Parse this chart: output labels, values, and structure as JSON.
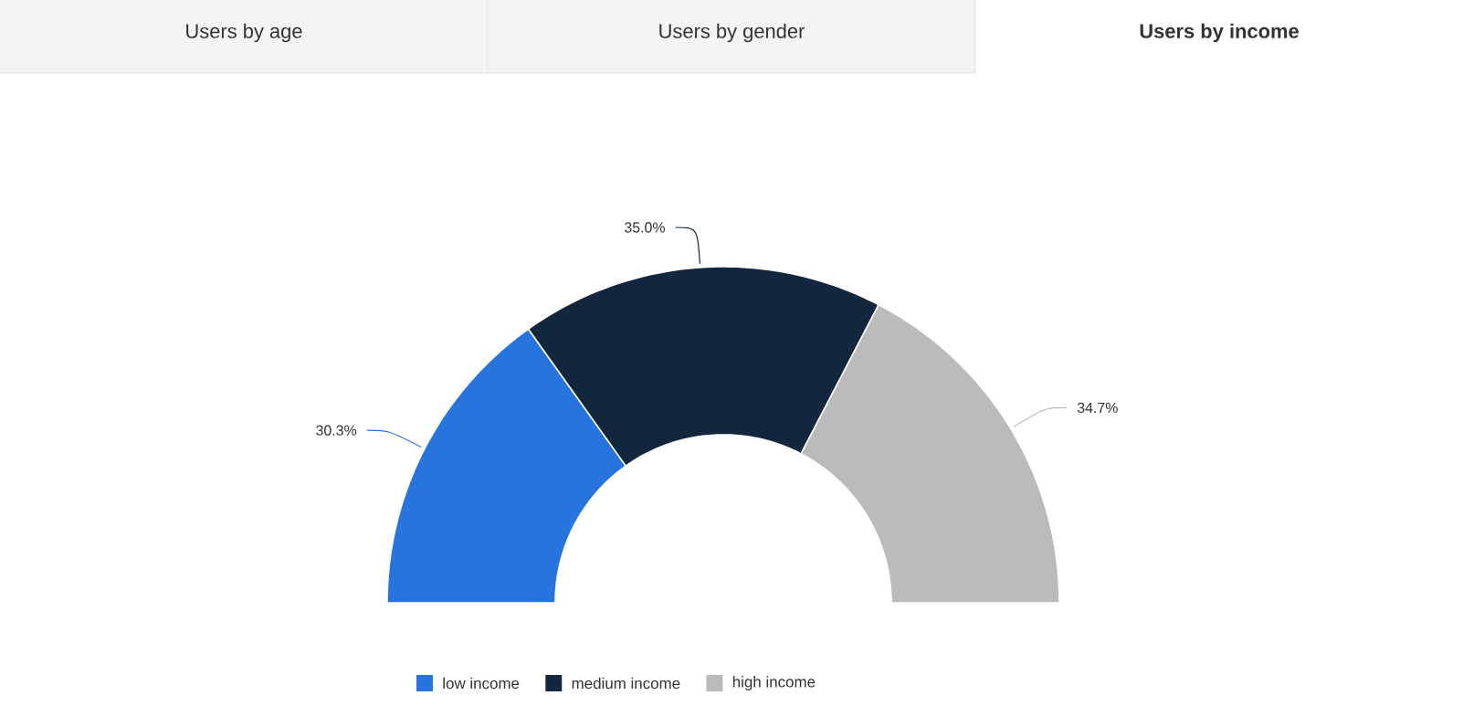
{
  "chart_data": {
    "type": "donut",
    "title": "Users by income",
    "annotations": [
      "Users by age",
      "Users by gender"
    ],
    "categories": [
      "low income",
      "medium income",
      "high income"
    ],
    "values": [
      30.3,
      35.0,
      34.7
    ],
    "value_labels": [
      "30.3%",
      "35.0%",
      "34.7%"
    ],
    "colors": [
      "#2874df",
      "#12263e",
      "#bbbbbb"
    ],
    "legend": "bottom"
  }
}
